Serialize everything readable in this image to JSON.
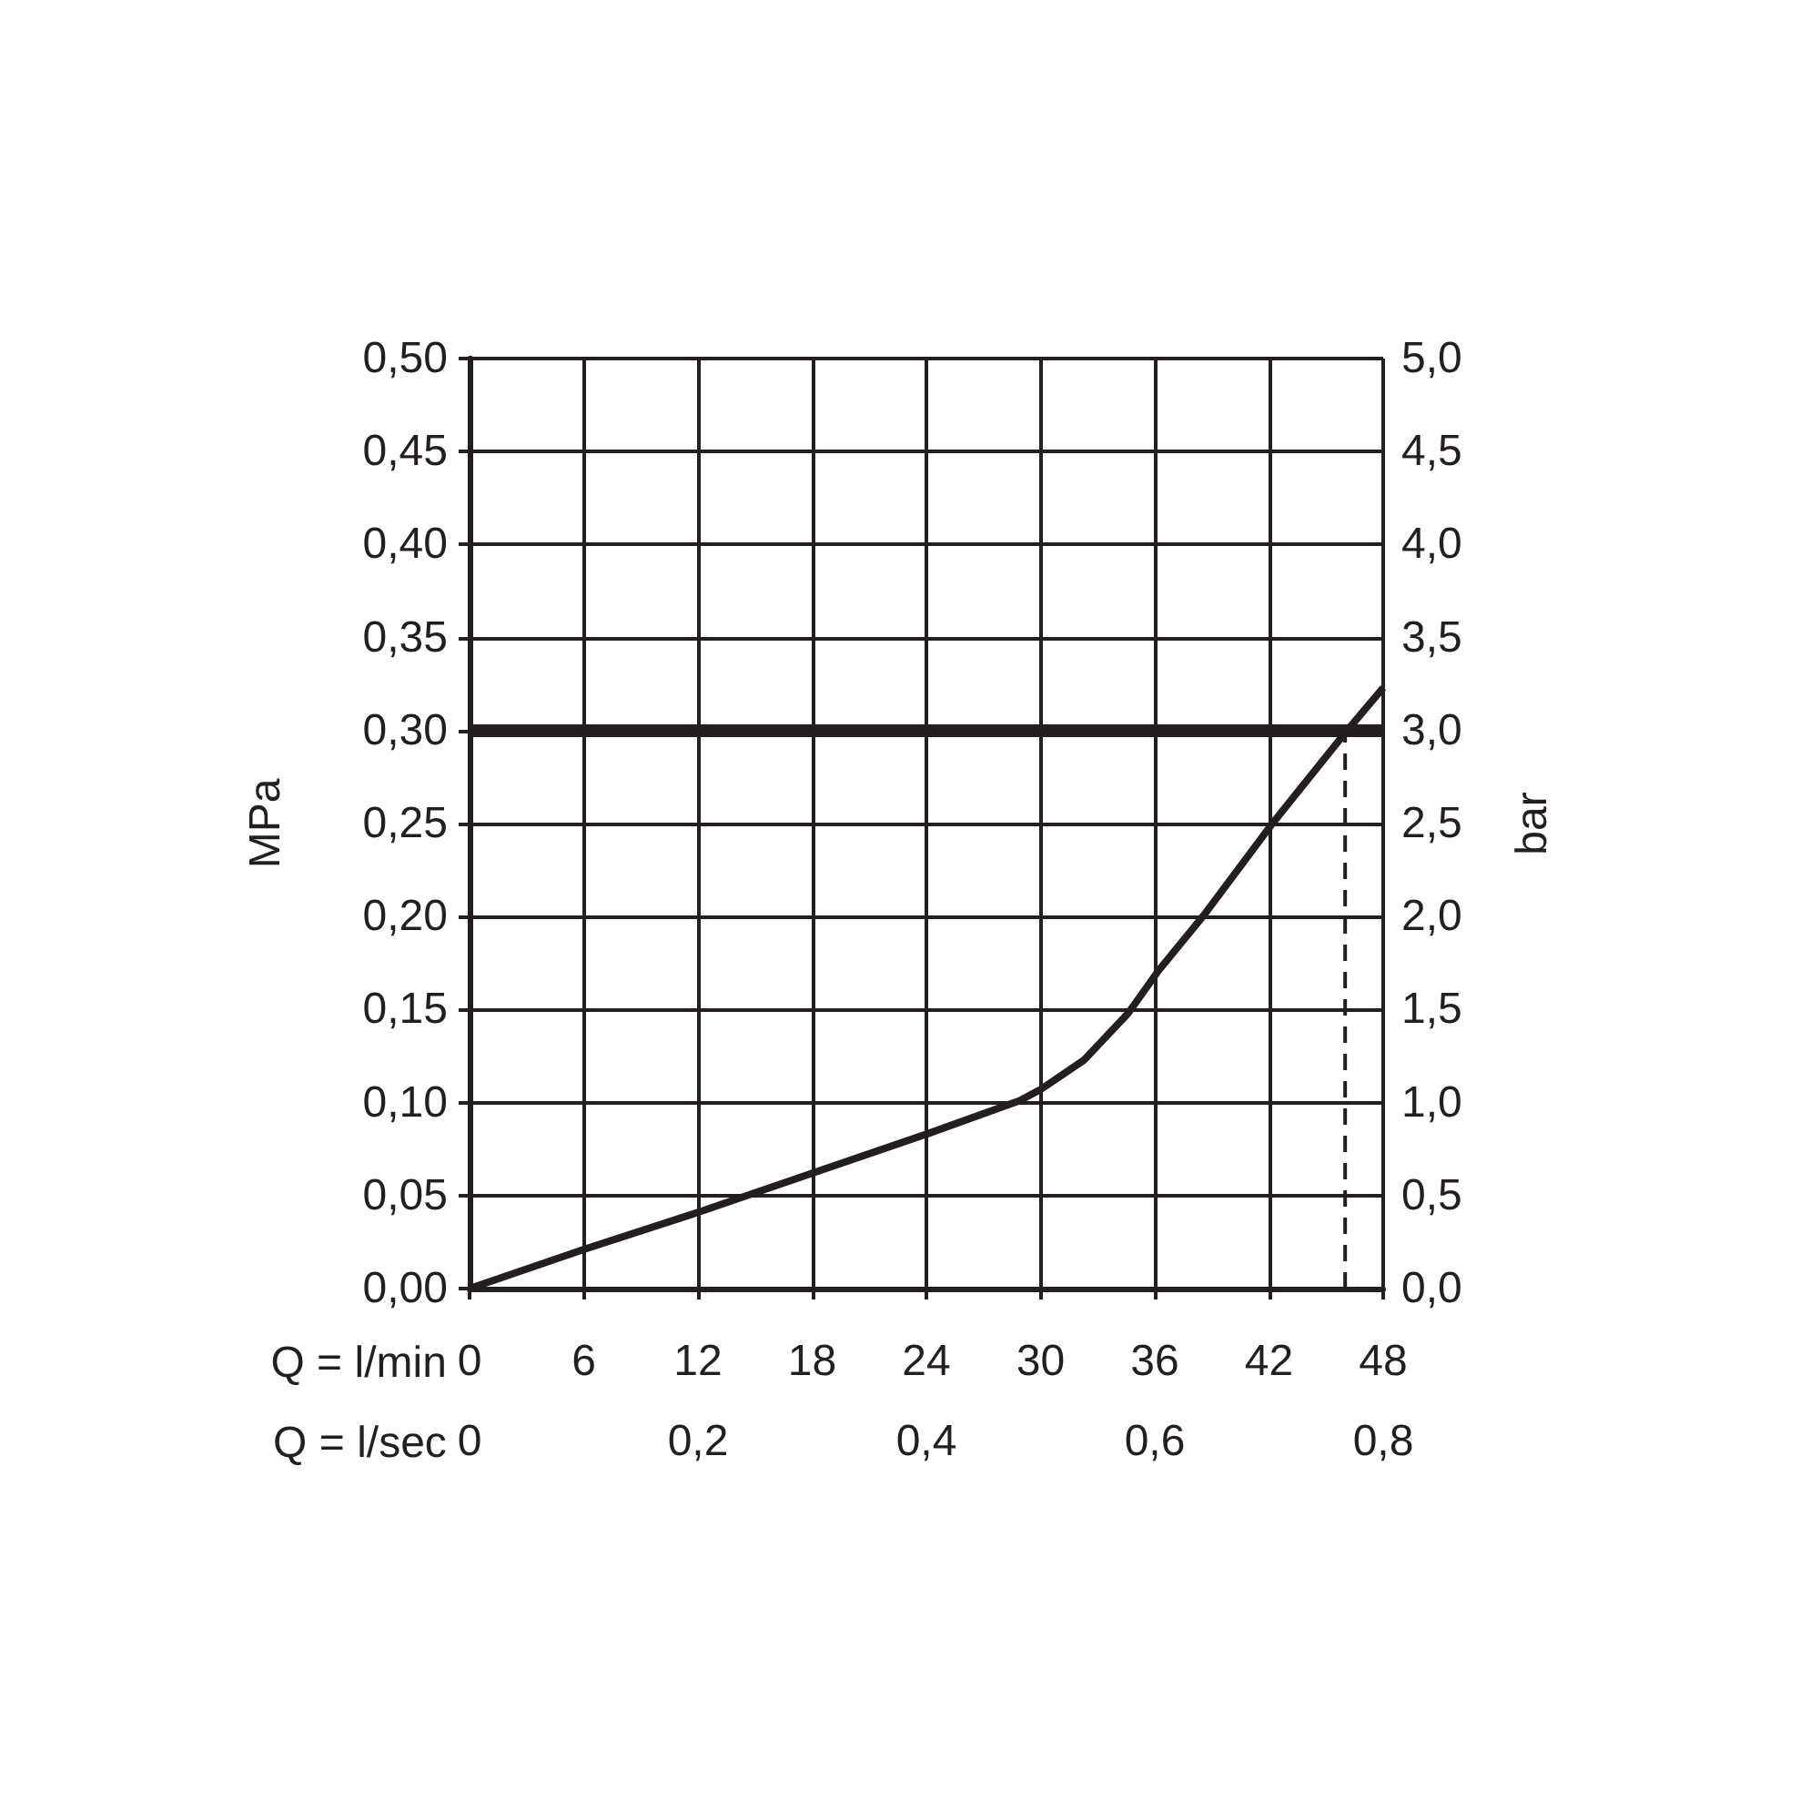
{
  "chart_data": {
    "type": "line",
    "xlabel": "Q = l/min",
    "x2label": "Q = l/sec",
    "ylabel": "MPa",
    "y2label": "bar",
    "xlim": [
      0,
      48
    ],
    "xticks": [
      0,
      6,
      12,
      18,
      24,
      30,
      36,
      42,
      48
    ],
    "x2lim": [
      0,
      0.8
    ],
    "x2ticks": [
      0,
      {
        "value": 0.2,
        "label": "0,2"
      },
      {
        "value": 0.4,
        "label": "0,4"
      },
      {
        "value": 0.6,
        "label": "0,6"
      },
      {
        "value": 0.8,
        "label": "0,8"
      }
    ],
    "ylim": [
      0,
      0.5
    ],
    "yticks": [
      {
        "value": 0,
        "label": "0,00"
      },
      {
        "value": 0.05,
        "label": "0,05"
      },
      {
        "value": 0.1,
        "label": "0,10"
      },
      {
        "value": 0.15,
        "label": "0,15"
      },
      {
        "value": 0.2,
        "label": "0,20"
      },
      {
        "value": 0.25,
        "label": "0,25"
      },
      {
        "value": 0.3,
        "label": "0,30"
      },
      {
        "value": 0.35,
        "label": "0,35"
      },
      {
        "value": 0.4,
        "label": "0,40"
      },
      {
        "value": 0.45,
        "label": "0,45"
      },
      {
        "value": 0.5,
        "label": "0,50"
      }
    ],
    "y2lim": [
      0,
      5
    ],
    "y2ticks": [
      {
        "value": 0,
        "label": "0,0"
      },
      {
        "value": 0.5,
        "label": "0,5"
      },
      {
        "value": 1,
        "label": "1,0"
      },
      {
        "value": 1.5,
        "label": "1,5"
      },
      {
        "value": 2,
        "label": "2,0"
      },
      {
        "value": 2.5,
        "label": "2,5"
      },
      {
        "value": 3,
        "label": "3,0"
      },
      {
        "value": 3.5,
        "label": "3,5"
      },
      {
        "value": 4,
        "label": "4,0"
      },
      {
        "value": 4.5,
        "label": "4,5"
      },
      {
        "value": 5,
        "label": "5,0"
      }
    ],
    "grid": true,
    "marker": "none",
    "line_style": "solid",
    "series": [
      {
        "color": "#231f20",
        "x": [
          0,
          6,
          12,
          18,
          24,
          28.9,
          30,
          32.3,
          34.6,
          36.2,
          38.6,
          42.1,
          46.1,
          48
        ],
        "values": [
          0,
          0.021,
          0.041,
          0.062,
          0.083,
          0.101,
          0.107,
          0.123,
          0.148,
          0.171,
          0.201,
          0.249,
          0.3,
          0.323
        ]
      },
      {
        "color": "#231f20",
        "line_style": "dashed",
        "x": [
          46,
          46
        ],
        "values": [
          0,
          0.3
        ]
      }
    ],
    "ref_lines": [
      {
        "axis": "y",
        "value": 0.3,
        "color": "#231f20"
      }
    ]
  }
}
